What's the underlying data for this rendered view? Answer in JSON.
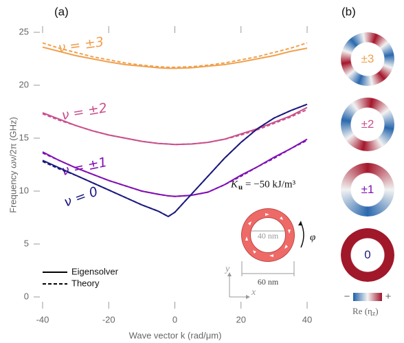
{
  "chart_data": {
    "type": "line",
    "panel_a": "(a)",
    "panel_b": "(b)",
    "x_label": "Wave vector k (rad/μm)",
    "y_label": "Frequency ων/2π (GHz)",
    "x": [
      -40,
      -35,
      -30,
      -25,
      -20,
      -15,
      -10,
      -5,
      -2,
      0,
      5,
      10,
      15,
      20,
      25,
      30,
      35,
      40
    ],
    "xlim": [
      -40,
      40
    ],
    "xticks": [
      -40,
      -20,
      0,
      20,
      40
    ],
    "ylim": [
      0,
      25
    ],
    "yticks": [
      0,
      5,
      10,
      15,
      20,
      25
    ],
    "legend": {
      "solid": "Eigensolver",
      "dashed": "Theory"
    },
    "series": [
      {
        "name": "ν = ±3",
        "color": "#f0a04e",
        "values": [
          23.6,
          23.2,
          22.8,
          22.5,
          22.2,
          21.95,
          21.8,
          21.65,
          21.6,
          21.6,
          21.65,
          21.8,
          21.95,
          22.2,
          22.5,
          22.8,
          23.2,
          23.5
        ],
        "theory": [
          24.0,
          23.5,
          23.1,
          22.7,
          22.4,
          22.1,
          21.9,
          21.75,
          21.7,
          21.7,
          21.75,
          21.9,
          22.1,
          22.4,
          22.7,
          23.1,
          23.5,
          24.0
        ]
      },
      {
        "name": "ν = ±2",
        "color": "#c9508c",
        "values": [
          17.4,
          16.8,
          16.2,
          15.7,
          15.3,
          15.0,
          14.7,
          14.5,
          14.45,
          14.4,
          14.45,
          14.6,
          14.9,
          15.4,
          15.9,
          16.5,
          17.1,
          17.9
        ],
        "theory": [
          17.3,
          16.7,
          16.2,
          15.7,
          15.3,
          15.0,
          14.7,
          14.5,
          14.45,
          14.4,
          14.45,
          14.6,
          14.9,
          15.3,
          15.8,
          16.4,
          17.0,
          17.7
        ]
      },
      {
        "name": "ν = ±1",
        "color": "#8010b4",
        "values": [
          13.7,
          12.9,
          12.2,
          11.6,
          11.0,
          10.5,
          10.0,
          9.7,
          9.55,
          9.5,
          9.6,
          9.9,
          10.6,
          11.5,
          12.3,
          13.2,
          14.0,
          14.9
        ],
        "theory": [
          13.6,
          12.9,
          12.2,
          11.6,
          11.0,
          10.5,
          10.0,
          9.7,
          9.55,
          9.5,
          9.6,
          9.9,
          10.6,
          11.4,
          12.3,
          13.1,
          14.0,
          14.8
        ]
      },
      {
        "name": "ν = 0",
        "color": "#1c1a80",
        "values": [
          12.9,
          12.2,
          11.5,
          10.8,
          10.1,
          9.4,
          8.7,
          8.1,
          7.6,
          8.0,
          9.7,
          11.4,
          13.1,
          14.6,
          15.9,
          16.9,
          17.6,
          18.2
        ],
        "theory": [
          12.8,
          12.1,
          11.5,
          10.8,
          10.1,
          9.4,
          8.7,
          8.1,
          7.6,
          8.0,
          9.7,
          11.4,
          13.1,
          14.6,
          15.9,
          16.9,
          17.6,
          18.2
        ]
      }
    ],
    "inset": {
      "symbol": "K",
      "subscript": "u",
      "value": "= −50 kJ/m³",
      "inner": "40 nm",
      "outer": "60 nm",
      "angle": "φ",
      "axis_x": "x",
      "axis_y": "y"
    },
    "modes": [
      "±3",
      "±2",
      "±1",
      "0"
    ],
    "colorbar": {
      "minus": "−",
      "plus": "+",
      "label": "Re (η",
      "label_sub": "z",
      "label_end": ")"
    }
  }
}
